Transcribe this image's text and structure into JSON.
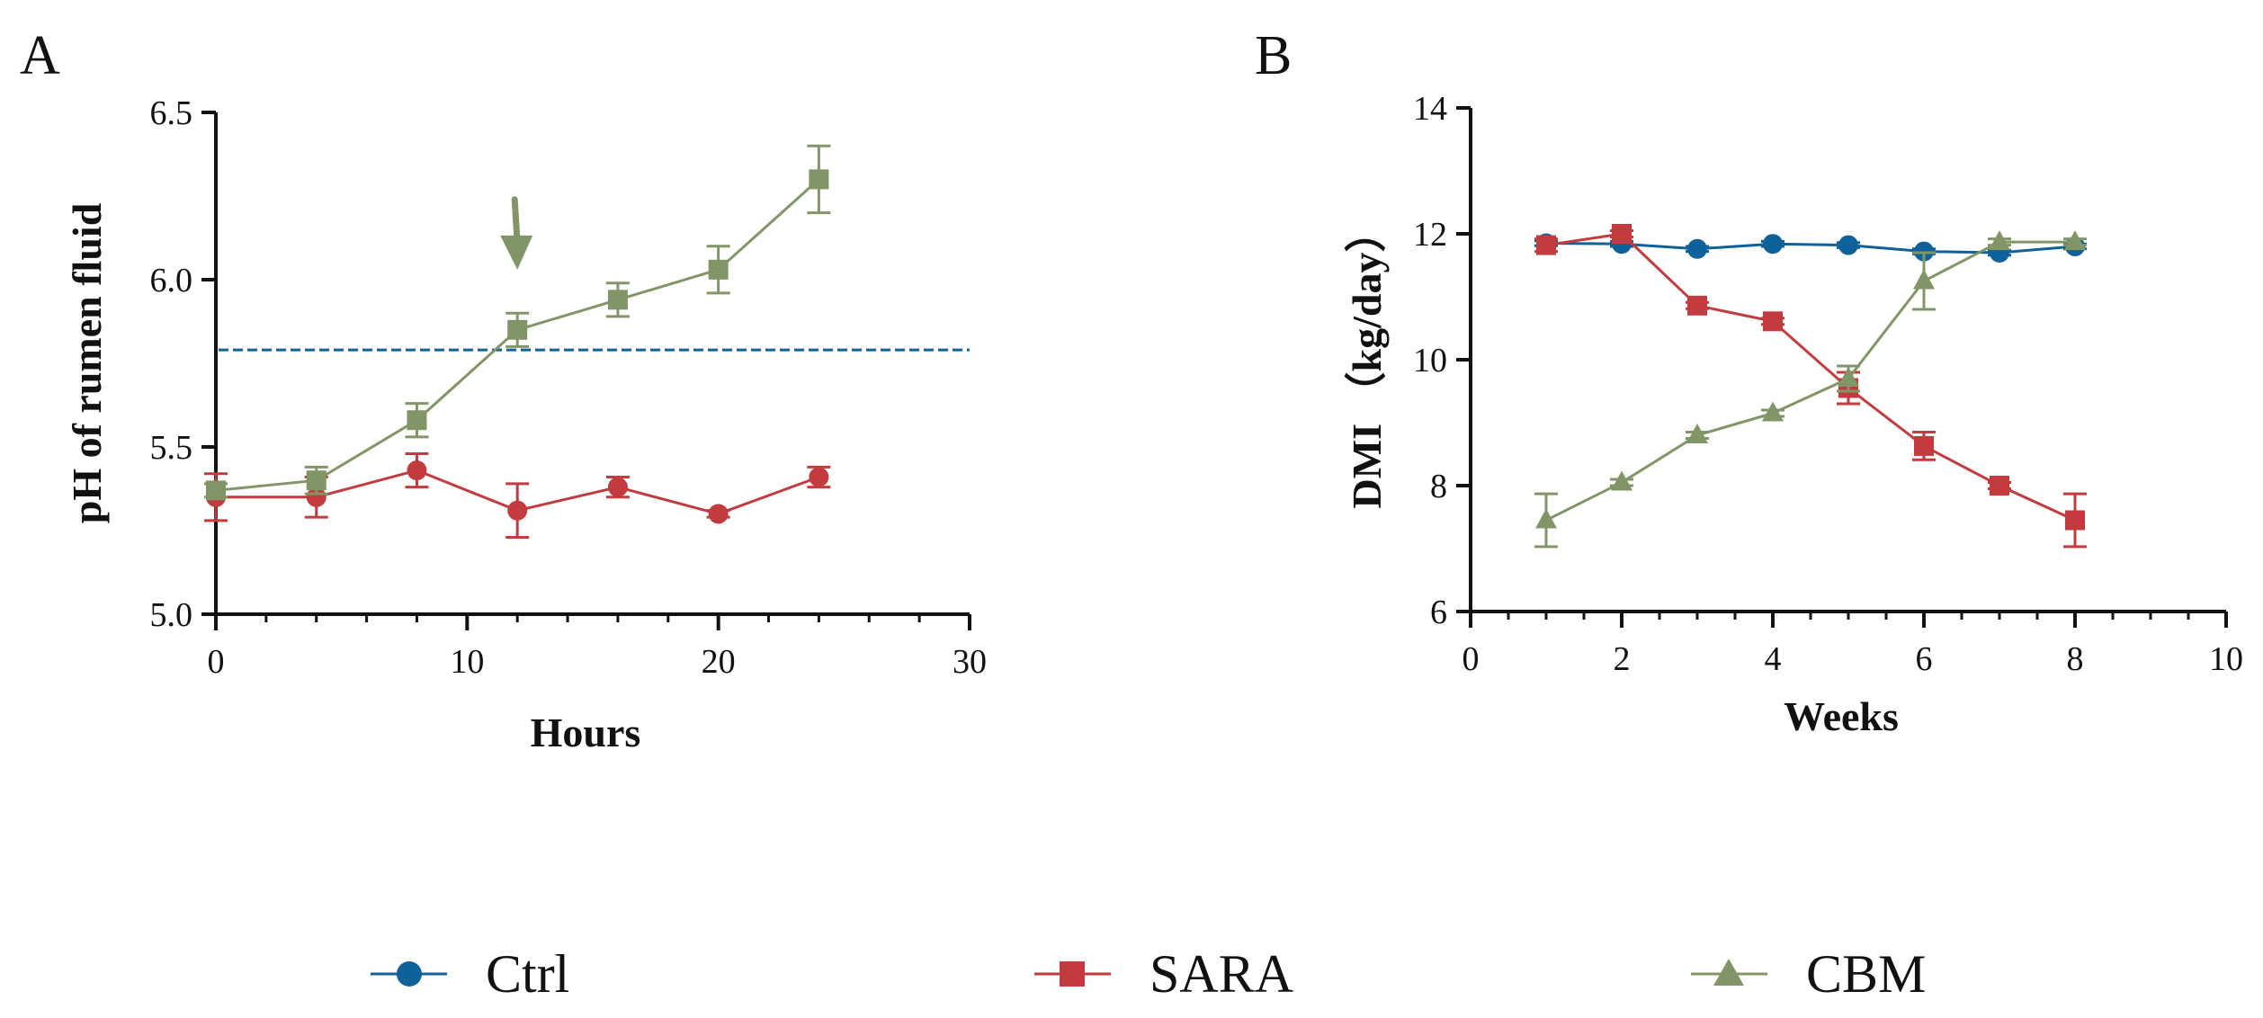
{
  "colors": {
    "ctrl": "#0F6199",
    "sara": "#C23B3F",
    "cbm": "#829567",
    "axis": "#111111"
  },
  "legend": [
    {
      "key": "ctrl",
      "label": "Ctrl",
      "marker": "circle"
    },
    {
      "key": "sara",
      "label": "SARA",
      "marker": "square"
    },
    {
      "key": "cbm",
      "label": "CBM",
      "marker": "triangle"
    }
  ],
  "chart_data": [
    {
      "panel_label": "A",
      "type": "line",
      "xlabel": "Hours",
      "ylabel": "pH of rumen fluid",
      "xlim": [
        0,
        30
      ],
      "ylim": [
        5.0,
        6.5
      ],
      "xticks": [
        0,
        10,
        20,
        30
      ],
      "xtick_labels": [
        "0",
        "10",
        "20",
        "30"
      ],
      "yticks": [
        5.0,
        5.5,
        6.0,
        6.5
      ],
      "ytick_labels": [
        "5.0",
        "5.5",
        "6.0",
        "6.5"
      ],
      "x_minor_step": 2,
      "reference_line": {
        "y": 5.79,
        "style": "dashed",
        "color_key": "ctrl"
      },
      "arrow_annotation": {
        "x": 12,
        "y_from": 6.24,
        "y_to": 6.03,
        "color_key": "cbm"
      },
      "series": [
        {
          "name": "SARA",
          "color_key": "sara",
          "marker": "circle",
          "x": [
            0,
            4,
            8,
            12,
            16,
            20,
            24
          ],
          "y": [
            5.35,
            5.35,
            5.43,
            5.31,
            5.38,
            5.3,
            5.41
          ],
          "err": [
            0.07,
            0.06,
            0.05,
            0.08,
            0.03,
            0.01,
            0.03
          ]
        },
        {
          "name": "CBM",
          "color_key": "cbm",
          "marker": "square",
          "x": [
            0,
            4,
            8,
            12,
            16,
            20,
            24
          ],
          "y": [
            5.37,
            5.4,
            5.58,
            5.85,
            5.94,
            6.03,
            6.3
          ],
          "err": [
            0.02,
            0.04,
            0.05,
            0.05,
            0.05,
            0.07,
            0.1
          ]
        }
      ]
    },
    {
      "panel_label": "B",
      "type": "line",
      "xlabel": "Weeks",
      "ylabel": "DMI （kg/day）",
      "xlim": [
        0,
        10
      ],
      "ylim": [
        6,
        14
      ],
      "xticks": [
        0,
        2,
        4,
        6,
        8,
        10
      ],
      "xtick_labels": [
        "0",
        "2",
        "4",
        "6",
        "8",
        "10"
      ],
      "yticks": [
        6,
        8,
        10,
        12,
        14
      ],
      "ytick_labels": [
        "6",
        "8",
        "10",
        "12",
        "14"
      ],
      "x_minor_step": 0.5,
      "series": [
        {
          "name": "Ctrl",
          "color_key": "ctrl",
          "marker": "circle",
          "x": [
            1,
            2,
            3,
            4,
            5,
            6,
            7,
            8
          ],
          "y": [
            11.85,
            11.84,
            11.76,
            11.84,
            11.82,
            11.72,
            11.7,
            11.8
          ],
          "err": [
            0.04,
            0.04,
            0.04,
            0.04,
            0.04,
            0.04,
            0.04,
            0.04
          ]
        },
        {
          "name": "SARA",
          "color_key": "sara",
          "marker": "square",
          "x": [
            1,
            2,
            3,
            4,
            5,
            6,
            7,
            8
          ],
          "y": [
            11.82,
            12.0,
            10.86,
            10.61,
            9.55,
            8.63,
            8.0,
            7.45
          ],
          "err": [
            0.1,
            0.05,
            0.05,
            0.05,
            0.25,
            0.22,
            0.05,
            0.42
          ]
        },
        {
          "name": "CBM",
          "color_key": "cbm",
          "marker": "triangle",
          "x": [
            1,
            2,
            3,
            4,
            5,
            6,
            7,
            8
          ],
          "y": [
            7.45,
            8.05,
            8.8,
            9.15,
            9.7,
            11.25,
            11.87,
            11.87
          ],
          "err": [
            0.42,
            0.05,
            0.05,
            0.05,
            0.2,
            0.45,
            0.05,
            0.05
          ]
        }
      ]
    }
  ]
}
